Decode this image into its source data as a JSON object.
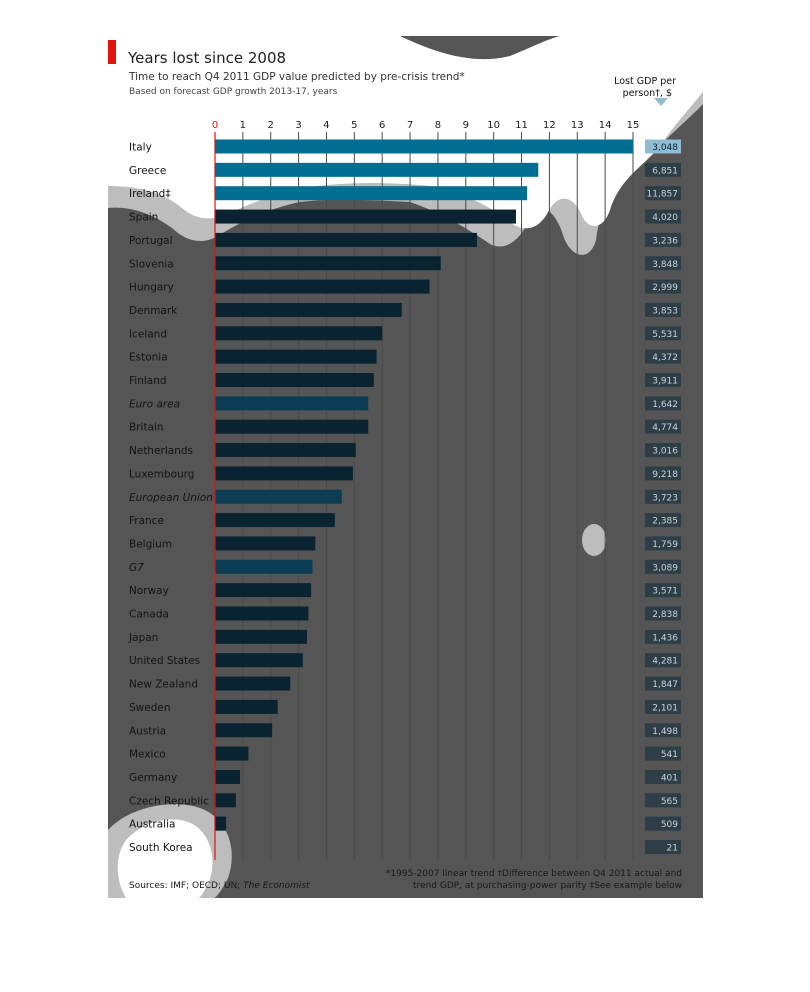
{
  "chart_data": {
    "type": "bar",
    "orientation": "horizontal",
    "title": "Years lost since 2008",
    "subtitle": "Time to reach Q4 2011 GDP value predicted by pre-crisis trend*",
    "subtitle2": "Based on forecast GDP growth 2013-17, years",
    "right_column_header": [
      "Lost GDP per",
      "person†, $"
    ],
    "xlim": [
      0,
      15
    ],
    "x_ticks": [
      "0",
      "1",
      "2",
      "3",
      "4",
      "5",
      "6",
      "7",
      "8",
      "9",
      "10",
      "11",
      "12",
      "13",
      "14",
      "15"
    ],
    "grid": true,
    "categories": [
      "Italy",
      "Greece",
      "Ireland‡",
      "Spain",
      "Portugal",
      "Slovenia",
      "Hungary",
      "Denmark",
      "Iceland",
      "Estonia",
      "Finland",
      "Euro area",
      "Britain",
      "Netherlands",
      "Luxembourg",
      "European Union",
      "France",
      "Belgium",
      "G7",
      "Norway",
      "Canada",
      "Japan",
      "United States",
      "New Zealand",
      "Sweden",
      "Austria",
      "Mexico",
      "Germany",
      "Czech Republic",
      "Australia",
      "South Korea"
    ],
    "aggregates": [
      "Euro area",
      "European Union",
      "G7"
    ],
    "values": [
      15,
      11.6,
      11.2,
      10.8,
      9.4,
      8.1,
      7.7,
      6.7,
      6.0,
      5.8,
      5.7,
      5.5,
      5.5,
      5.05,
      4.95,
      4.55,
      4.3,
      3.6,
      3.5,
      3.45,
      3.35,
      3.3,
      3.15,
      2.7,
      2.25,
      2.05,
      1.2,
      0.9,
      0.75,
      0.4,
      0
    ],
    "lost_gdp_per_person": [
      "3,048",
      "6,851",
      "11,857",
      "4,020",
      "3,236",
      "3,848",
      "2,999",
      "3,853",
      "5,531",
      "4,372",
      "3,911",
      "1,642",
      "4,774",
      "3,016",
      "9,218",
      "3,723",
      "2,385",
      "1,759",
      "3,089",
      "3,571",
      "2,838",
      "1,436",
      "4,281",
      "1,847",
      "2,101",
      "1,498",
      "541",
      "401",
      "565",
      "509",
      "21"
    ],
    "footnote_left": "1995-2007 linear trend",
    "footnote_right1": "Difference between Q4 2011 actual and",
    "footnote_right2": "trend GDP, at purchasing-power parity",
    "footnote_right3": "See example below",
    "source_prefix": "Sources: IMF; OECD; UN;",
    "source_italic": "The Economist",
    "colors": {
      "bar": "#0a2330",
      "bar_aggregate": "#0d3c55",
      "bar_highlight": "#006e92",
      "panel": "#555555",
      "value_box": "#2e3e47",
      "value_box_highlight": "#8fbcd0",
      "zero_line": "#e3120b",
      "accent": "#e3120b"
    }
  }
}
